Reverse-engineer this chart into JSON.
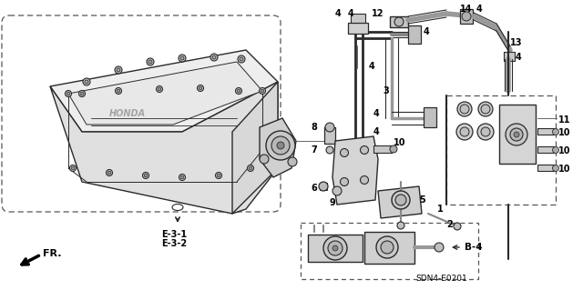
{
  "bg_color": "#ffffff",
  "lc": "#2a2a2a",
  "dc": "#555555",
  "tc": "#000000",
  "fig_width": 6.4,
  "fig_height": 3.19,
  "dpi": 100,
  "labels": {
    "E31": "E-3-1",
    "E32": "E-3-2",
    "B4": "B-4",
    "SDN": "SDN4-E0201",
    "FR": "FR."
  }
}
